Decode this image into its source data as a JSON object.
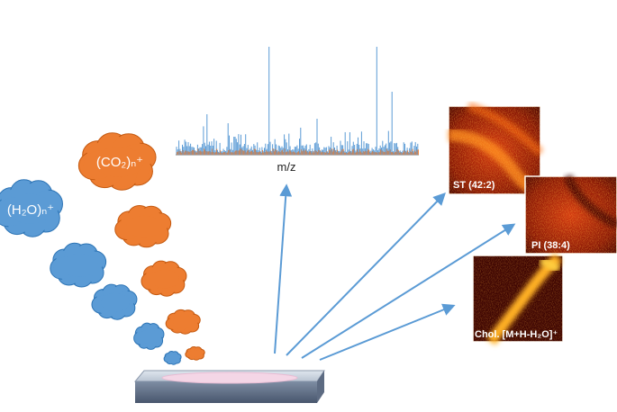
{
  "ions": {
    "co2": "(CO₂)ₙ⁺",
    "h2o": "(H₂O)ₙ⁺"
  },
  "spectrum": {
    "axis_label": "m/z"
  },
  "images": [
    {
      "label": "ST (42:2)"
    },
    {
      "label": "PI (38:4)"
    },
    {
      "label": "Chol. [M+H-H₂O]⁺"
    }
  ]
}
